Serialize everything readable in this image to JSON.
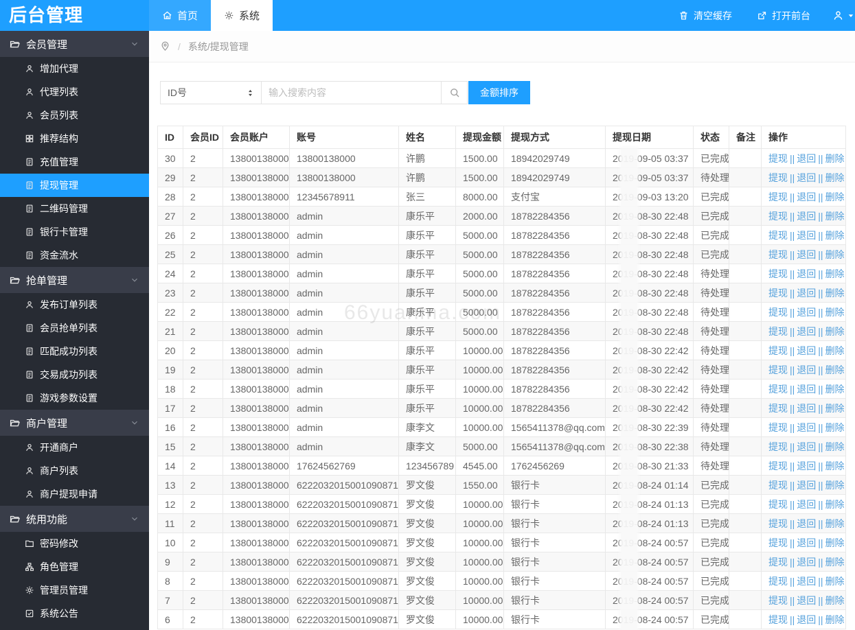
{
  "app": {
    "title": "后台管理"
  },
  "topbar": {
    "tabs": [
      {
        "label": "首页",
        "icon": "home-icon"
      },
      {
        "label": "系统",
        "icon": "gear-icon",
        "active": true
      }
    ],
    "actions": [
      {
        "label": "清空缓存",
        "icon": "trash-icon"
      },
      {
        "label": "打开前台",
        "icon": "external-link-icon"
      }
    ]
  },
  "breadcrumb": {
    "separator": "/",
    "path": "系统/提现管理"
  },
  "sidebar": {
    "sections": [
      {
        "label": "会员管理",
        "icon": "folder-open-icon",
        "items": [
          {
            "label": "增加代理",
            "icon": "user-icon"
          },
          {
            "label": "代理列表",
            "icon": "user-icon"
          },
          {
            "label": "会员列表",
            "icon": "user-icon"
          },
          {
            "label": "推荐结构",
            "icon": "grid-icon"
          },
          {
            "label": "充值管理",
            "icon": "file-icon"
          },
          {
            "label": "提现管理",
            "icon": "file-icon",
            "active": true
          },
          {
            "label": "二维码管理",
            "icon": "file-icon"
          },
          {
            "label": "银行卡管理",
            "icon": "file-icon"
          },
          {
            "label": "资金流水",
            "icon": "file-icon"
          }
        ]
      },
      {
        "label": "抢单管理",
        "icon": "folder-open-icon",
        "items": [
          {
            "label": "发布订单列表",
            "icon": "user-icon"
          },
          {
            "label": "会员抢单列表",
            "icon": "file-icon"
          },
          {
            "label": "匹配成功列表",
            "icon": "file-icon"
          },
          {
            "label": "交易成功列表",
            "icon": "file-icon"
          },
          {
            "label": "游戏参数设置",
            "icon": "file-icon"
          }
        ]
      },
      {
        "label": "商户管理",
        "icon": "folder-open-icon",
        "items": [
          {
            "label": "开通商户",
            "icon": "user-icon"
          },
          {
            "label": "商户列表",
            "icon": "user-icon"
          },
          {
            "label": "商户提现申请",
            "icon": "user-icon"
          }
        ]
      },
      {
        "label": "统用功能",
        "icon": "folder-open-icon",
        "items": [
          {
            "label": "密码修改",
            "icon": "folder-icon"
          },
          {
            "label": "角色管理",
            "icon": "sitemap-icon"
          },
          {
            "label": "管理员管理",
            "icon": "gear-icon"
          },
          {
            "label": "系统公告",
            "icon": "check-square-icon"
          }
        ]
      }
    ]
  },
  "toolbar": {
    "filter_value": "ID号",
    "search_placeholder": "输入搜索内容",
    "sort_button": "金额排序"
  },
  "table": {
    "columns": [
      "ID",
      "会员ID",
      "会员账户",
      "账号",
      "姓名",
      "提现金额",
      "提现方式",
      "提现日期",
      "状态",
      "备注",
      "操作"
    ],
    "action_labels": [
      "提现",
      "退回",
      "删除"
    ],
    "action_sep": "||",
    "rows": [
      {
        "id": "30",
        "member_id": "2",
        "account": "13800138000",
        "number": "13800138000",
        "name": "许鹏",
        "amount": "1500.00",
        "method": "18942029749",
        "date": "2019-09-05 03:37",
        "status": "已完成",
        "remark": ""
      },
      {
        "id": "29",
        "member_id": "2",
        "account": "13800138000",
        "number": "13800138000",
        "name": "许鹏",
        "amount": "1500.00",
        "method": "18942029749",
        "date": "2019-09-05 03:37",
        "status": "待处理",
        "remark": ""
      },
      {
        "id": "28",
        "member_id": "2",
        "account": "13800138000",
        "number": "12345678911",
        "name": "张三",
        "amount": "8000.00",
        "method": "支付宝",
        "date": "2019-09-03 13:20",
        "status": "已完成",
        "remark": ""
      },
      {
        "id": "27",
        "member_id": "2",
        "account": "13800138000",
        "number": "admin",
        "name": "康乐平",
        "amount": "2000.00",
        "method": "18782284356",
        "date": "2019-08-30 22:48",
        "status": "已完成",
        "remark": ""
      },
      {
        "id": "26",
        "member_id": "2",
        "account": "13800138000",
        "number": "admin",
        "name": "康乐平",
        "amount": "5000.00",
        "method": "18782284356",
        "date": "2019-08-30 22:48",
        "status": "已完成",
        "remark": ""
      },
      {
        "id": "25",
        "member_id": "2",
        "account": "13800138000",
        "number": "admin",
        "name": "康乐平",
        "amount": "5000.00",
        "method": "18782284356",
        "date": "2019-08-30 22:48",
        "status": "已完成",
        "remark": ""
      },
      {
        "id": "24",
        "member_id": "2",
        "account": "13800138000",
        "number": "admin",
        "name": "康乐平",
        "amount": "5000.00",
        "method": "18782284356",
        "date": "2019-08-30 22:48",
        "status": "待处理",
        "remark": ""
      },
      {
        "id": "23",
        "member_id": "2",
        "account": "13800138000",
        "number": "admin",
        "name": "康乐平",
        "amount": "5000.00",
        "method": "18782284356",
        "date": "2019-08-30 22:48",
        "status": "待处理",
        "remark": ""
      },
      {
        "id": "22",
        "member_id": "2",
        "account": "13800138000",
        "number": "admin",
        "name": "康乐平",
        "amount": "5000.00",
        "method": "18782284356",
        "date": "2019-08-30 22:48",
        "status": "待处理",
        "remark": ""
      },
      {
        "id": "21",
        "member_id": "2",
        "account": "13800138000",
        "number": "admin",
        "name": "康乐平",
        "amount": "5000.00",
        "method": "18782284356",
        "date": "2019-08-30 22:48",
        "status": "待处理",
        "remark": ""
      },
      {
        "id": "20",
        "member_id": "2",
        "account": "13800138000",
        "number": "admin",
        "name": "康乐平",
        "amount": "10000.00",
        "method": "18782284356",
        "date": "2019-08-30 22:42",
        "status": "待处理",
        "remark": ""
      },
      {
        "id": "19",
        "member_id": "2",
        "account": "13800138000",
        "number": "admin",
        "name": "康乐平",
        "amount": "10000.00",
        "method": "18782284356",
        "date": "2019-08-30 22:42",
        "status": "待处理",
        "remark": ""
      },
      {
        "id": "18",
        "member_id": "2",
        "account": "13800138000",
        "number": "admin",
        "name": "康乐平",
        "amount": "10000.00",
        "method": "18782284356",
        "date": "2019-08-30 22:42",
        "status": "待处理",
        "remark": ""
      },
      {
        "id": "17",
        "member_id": "2",
        "account": "13800138000",
        "number": "admin",
        "name": "康乐平",
        "amount": "10000.00",
        "method": "18782284356",
        "date": "2019-08-30 22:42",
        "status": "待处理",
        "remark": ""
      },
      {
        "id": "16",
        "member_id": "2",
        "account": "13800138000",
        "number": "admin",
        "name": "康李文",
        "amount": "10000.00",
        "method": "1565411378@qq.com",
        "date": "2019-08-30 22:39",
        "status": "待处理",
        "remark": ""
      },
      {
        "id": "15",
        "member_id": "2",
        "account": "13800138000",
        "number": "admin",
        "name": "康李文",
        "amount": "5000.00",
        "method": "1565411378@qq.com",
        "date": "2019-08-30 22:38",
        "status": "待处理",
        "remark": ""
      },
      {
        "id": "14",
        "member_id": "2",
        "account": "13800138000",
        "number": "17624562769",
        "name": "123456789",
        "amount": "4545.00",
        "method": "1762456269",
        "date": "2019-08-30 21:33",
        "status": "待处理",
        "remark": ""
      },
      {
        "id": "13",
        "member_id": "2",
        "account": "13800138000",
        "number": "6222032015001090871",
        "name": "罗文俊",
        "amount": "1550.00",
        "method": "银行卡",
        "date": "2019-08-24 01:14",
        "status": "已完成",
        "remark": ""
      },
      {
        "id": "12",
        "member_id": "2",
        "account": "13800138000",
        "number": "6222032015001090871",
        "name": "罗文俊",
        "amount": "10000.00",
        "method": "银行卡",
        "date": "2019-08-24 01:13",
        "status": "已完成",
        "remark": ""
      },
      {
        "id": "11",
        "member_id": "2",
        "account": "13800138000",
        "number": "6222032015001090871",
        "name": "罗文俊",
        "amount": "10000.00",
        "method": "银行卡",
        "date": "2019-08-24 01:13",
        "status": "已完成",
        "remark": ""
      },
      {
        "id": "10",
        "member_id": "2",
        "account": "13800138000",
        "number": "6222032015001090871",
        "name": "罗文俊",
        "amount": "10000.00",
        "method": "银行卡",
        "date": "2019-08-24 00:57",
        "status": "已完成",
        "remark": ""
      },
      {
        "id": "9",
        "member_id": "2",
        "account": "13800138000",
        "number": "6222032015001090871",
        "name": "罗文俊",
        "amount": "10000.00",
        "method": "银行卡",
        "date": "2019-08-24 00:57",
        "status": "已完成",
        "remark": ""
      },
      {
        "id": "8",
        "member_id": "2",
        "account": "13800138000",
        "number": "6222032015001090871",
        "name": "罗文俊",
        "amount": "10000.00",
        "method": "银行卡",
        "date": "2019-08-24 00:57",
        "status": "已完成",
        "remark": ""
      },
      {
        "id": "7",
        "member_id": "2",
        "account": "13800138000",
        "number": "6222032015001090871",
        "name": "罗文俊",
        "amount": "10000.00",
        "method": "银行卡",
        "date": "2019-08-24 00:57",
        "status": "已完成",
        "remark": ""
      },
      {
        "id": "6",
        "member_id": "2",
        "account": "13800138000",
        "number": "6222032015001090871",
        "name": "罗文俊",
        "amount": "10000.00",
        "method": "银行卡",
        "date": "2019-08-24 00:57",
        "status": "已完成",
        "remark": ""
      }
    ]
  },
  "watermark": {
    "text": "66yuanma.com"
  },
  "colors": {
    "accent": "#1E9FFF",
    "sidebar_bg": "#272B33",
    "sidebar_section_bg": "#393D49",
    "link": "#55a1dc"
  }
}
